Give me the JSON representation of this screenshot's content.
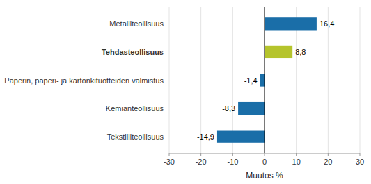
{
  "chart_data": {
    "type": "bar",
    "orientation": "horizontal",
    "categories": [
      "Tekstiiliteollisuus",
      "Kemianteollisuus",
      "Paperin, paperi- ja kartonkituotteiden valmistus",
      "Tehdasteollisuus",
      "Metalliteollisuus"
    ],
    "values": [
      -14.9,
      -8.3,
      -1.4,
      8.8,
      16.4
    ],
    "value_labels": [
      "-14,9",
      "-8,3",
      "-1,4",
      "8,8",
      "16,4"
    ],
    "colors": [
      "#1a6ea8",
      "#1a6ea8",
      "#1a6ea8",
      "#b5c42c",
      "#1a6ea8"
    ],
    "xlabel": "Muutos %",
    "xlim": [
      -30,
      30
    ],
    "xticks": [
      -30,
      -20,
      -10,
      0,
      10,
      20,
      30
    ],
    "grid": true,
    "data_labels": true
  }
}
